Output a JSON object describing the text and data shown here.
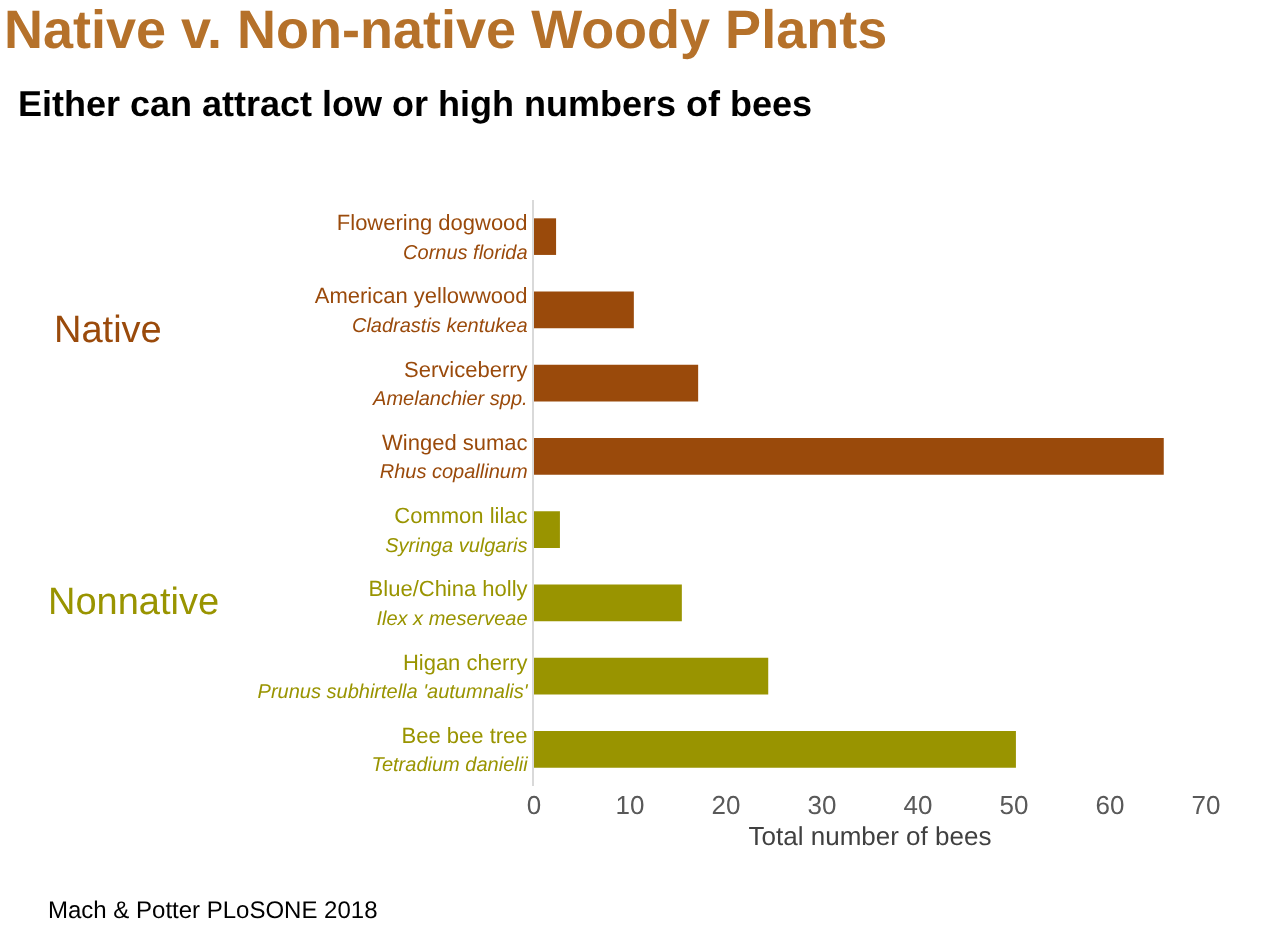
{
  "chart_data": {
    "type": "bar",
    "orientation": "horizontal",
    "title": "Native v. Non-native Woody Plants",
    "subtitle": "Either can attract low or high numbers of bees",
    "xlabel": "Total number of bees",
    "categories": [
      "Flowering dogwood\nCornus florida",
      "American yellowwood\nCladrastis kentukea",
      "Serviceberry\nAmelanchier spp.",
      "Winged sumac\nRhus copallinum",
      "Common lilac\nSyringa vulgaris",
      "Blue/China holly\nIlex x meserveae",
      "Higan cherry\nPrunus subhirtella 'autumnalis'",
      "Bee bee tree\nTetradium danielii"
    ],
    "values": [
      2.3,
      10.4,
      17.1,
      65.6,
      2.7,
      15.4,
      24.4,
      50.2
    ],
    "colors": [
      "#9a4a0b",
      "#9a4a0b",
      "#9a4a0b",
      "#9a4a0b",
      "#999400",
      "#999400",
      "#999400",
      "#999400"
    ],
    "xlim": [
      0,
      70
    ],
    "xticks": [
      0,
      10,
      20,
      30,
      40,
      50,
      60,
      70
    ],
    "annotations": [
      "Native",
      "Nonnative",
      "Mach & Potter PLoSONE 2018"
    ]
  }
}
